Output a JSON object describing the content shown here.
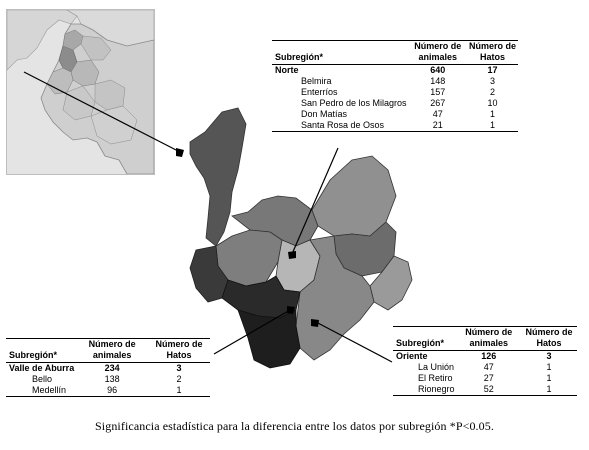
{
  "tables": {
    "norte": {
      "headers": [
        "Subregión*",
        "Número de animales",
        "Número de Hatos"
      ],
      "region": {
        "name": "Norte",
        "animales": "640",
        "hatos": "17"
      },
      "rows": [
        {
          "name": "Belmira",
          "animales": "148",
          "hatos": "3"
        },
        {
          "name": "Enterríos",
          "animales": "157",
          "hatos": "2"
        },
        {
          "name": "San Pedro de los Milagros",
          "animales": "267",
          "hatos": "10"
        },
        {
          "name": "Don Matías",
          "animales": "47",
          "hatos": "1"
        },
        {
          "name": "Santa Rosa de Osos",
          "animales": "21",
          "hatos": "1"
        }
      ]
    },
    "valle": {
      "headers": [
        "Subregión*",
        "Número de animales",
        "Número de Hatos"
      ],
      "region": {
        "name": "Valle de Aburra",
        "animales": "234",
        "hatos": "3"
      },
      "rows": [
        {
          "name": "Bello",
          "animales": "138",
          "hatos": "2"
        },
        {
          "name": "Medellín",
          "animales": "96",
          "hatos": "1"
        }
      ]
    },
    "oriente": {
      "headers": [
        "Subregión*",
        "Número de animales",
        "Número de Hatos"
      ],
      "region": {
        "name": "Oriente",
        "animales": "126",
        "hatos": "3"
      },
      "rows": [
        {
          "name": "La Unión",
          "animales": "47",
          "hatos": "1"
        },
        {
          "name": "El Retiro",
          "animales": "27",
          "hatos": "1"
        },
        {
          "name": "Rionegro",
          "animales": "52",
          "hatos": "1"
        }
      ]
    }
  },
  "caption": "Significancia estadística para la diferencia entre los datos por subregión *P<0.05.",
  "colors": {
    "inset_background": "#e4e4e4",
    "map_dark": "#2a2a2a",
    "map_mid": "#6e6e6e",
    "map_light": "#b0b0b0"
  }
}
